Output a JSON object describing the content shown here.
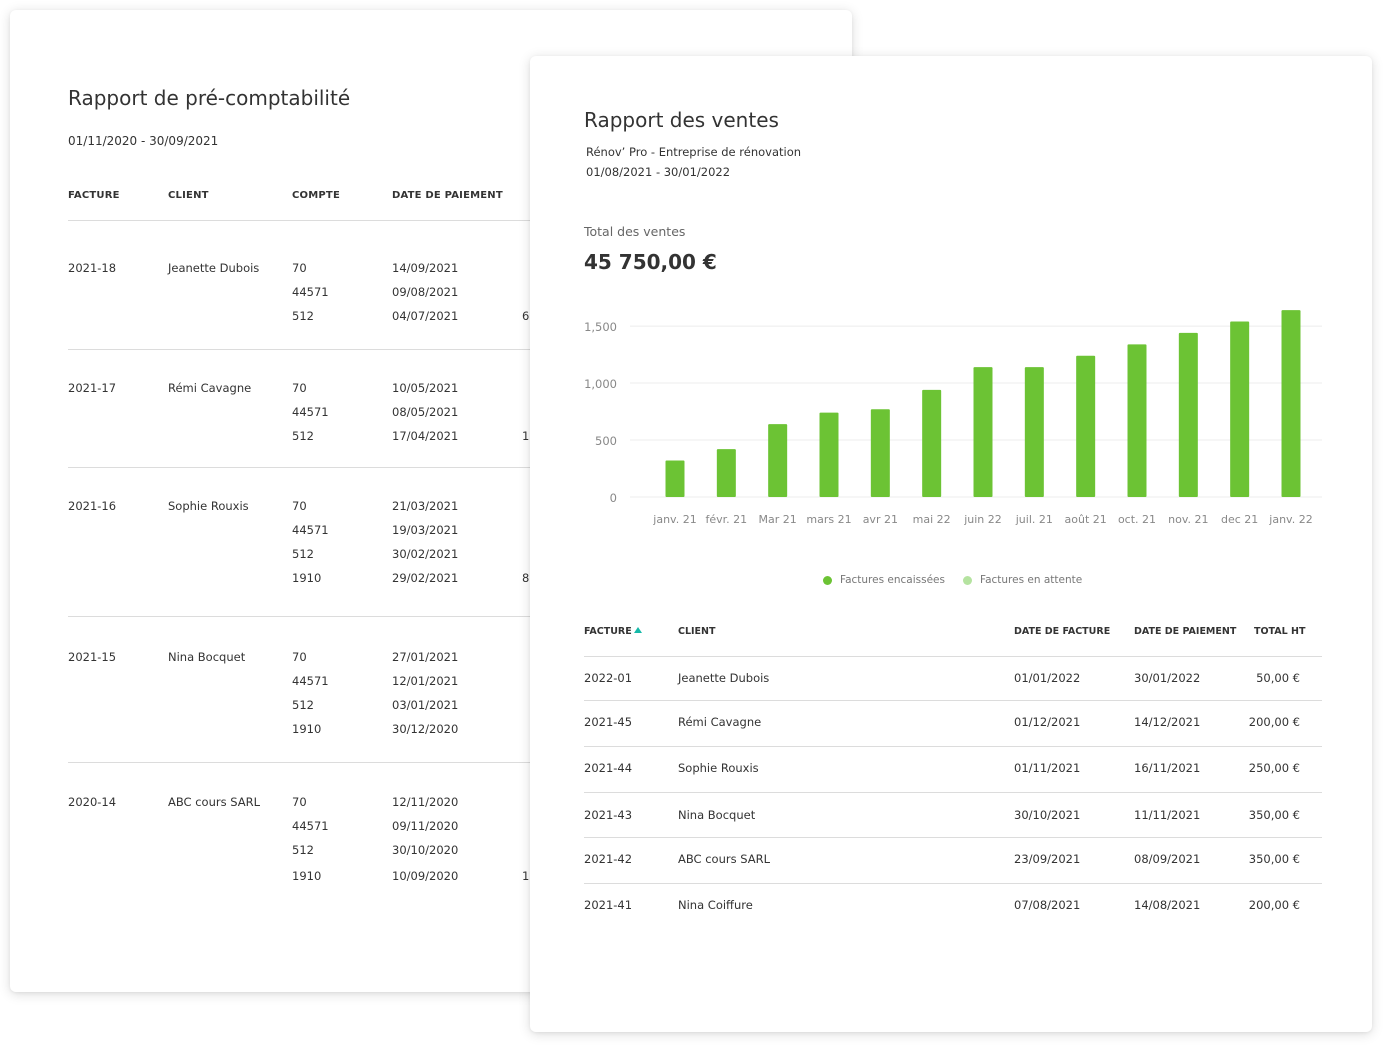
{
  "precompta": {
    "title": "Rapport de pré-comptabilité",
    "period": "01/11/2020 - 30/09/2021",
    "headers": [
      "FACTURE",
      "CLIENT",
      "COMPTE",
      "DATE DE PAIEMENT"
    ],
    "entries": [
      {
        "facture": "2021-18",
        "client": "Jeanette Dubois",
        "lines": [
          {
            "compte": "70",
            "date": "14/09/2021",
            "extra": ""
          },
          {
            "compte": "44571",
            "date": "09/08/2021",
            "extra": ""
          },
          {
            "compte": "512",
            "date": "04/07/2021",
            "extra": "6"
          }
        ]
      },
      {
        "facture": "2021-17",
        "client": "Rémi Cavagne",
        "lines": [
          {
            "compte": "70",
            "date": "10/05/2021",
            "extra": ""
          },
          {
            "compte": "44571",
            "date": "08/05/2021",
            "extra": ""
          },
          {
            "compte": "512",
            "date": "17/04/2021",
            "extra": "1"
          }
        ]
      },
      {
        "facture": "2021-16",
        "client": "Sophie Rouxis",
        "lines": [
          {
            "compte": "70",
            "date": "21/03/2021",
            "extra": ""
          },
          {
            "compte": "44571",
            "date": "19/03/2021",
            "extra": ""
          },
          {
            "compte": "512",
            "date": "30/02/2021",
            "extra": ""
          },
          {
            "compte": "1910",
            "date": "29/02/2021",
            "extra": "8"
          }
        ]
      },
      {
        "facture": "2021-15",
        "client": "Nina Bocquet",
        "lines": [
          {
            "compte": "70",
            "date": "27/01/2021",
            "extra": ""
          },
          {
            "compte": "44571",
            "date": "12/01/2021",
            "extra": ""
          },
          {
            "compte": "512",
            "date": "03/01/2021",
            "extra": ""
          },
          {
            "compte": "1910",
            "date": "30/12/2020",
            "extra": ""
          }
        ]
      },
      {
        "facture": "2020-14",
        "client": "ABC cours SARL",
        "lines": [
          {
            "compte": "70",
            "date": "12/11/2020",
            "extra": ""
          },
          {
            "compte": "44571",
            "date": "09/11/2020",
            "extra": ""
          },
          {
            "compte": "512",
            "date": "30/10/2020",
            "extra": ""
          },
          {
            "compte": "1910",
            "date": "10/09/2020",
            "extra": "1"
          }
        ]
      }
    ]
  },
  "ventes": {
    "title": "Rapport des ventes",
    "company": "Rénov’ Pro - Entreprise de rénovation",
    "period": "01/08/2021 - 30/01/2022",
    "total_label": "Total des ventes",
    "total_value": "45 750,00 €",
    "legend": {
      "paid": "Factures encaissées",
      "pending": "Factures en attente"
    },
    "colors": {
      "paid": "#6cc334",
      "pending": "#b5e3a0"
    },
    "table": {
      "headers": {
        "facture": "FACTURE",
        "client": "CLIENT",
        "date_facture": "DATE DE FACTURE",
        "date_paiement": "DATE DE PAIEMENT",
        "total": "TOTAL HT"
      },
      "rows": [
        {
          "facture": "2022-01",
          "client": "Jeanette Dubois",
          "date_facture": "01/01/2022",
          "date_paiement": "30/01/2022",
          "total": "50,00 €"
        },
        {
          "facture": "2021-45",
          "client": "Rémi Cavagne",
          "date_facture": "01/12/2021",
          "date_paiement": "14/12/2021",
          "total": "200,00 €"
        },
        {
          "facture": "2021-44",
          "client": "Sophie Rouxis",
          "date_facture": "01/11/2021",
          "date_paiement": "16/11/2021",
          "total": "250,00 €"
        },
        {
          "facture": "2021-43",
          "client": "Nina Bocquet",
          "date_facture": "30/10/2021",
          "date_paiement": "11/11/2021",
          "total": "350,00 €"
        },
        {
          "facture": "2021-42",
          "client": "ABC cours SARL",
          "date_facture": "23/09/2021",
          "date_paiement": "08/09/2021",
          "total": "350,00 €"
        },
        {
          "facture": "2021-41",
          "client": "Nina Coiffure",
          "date_facture": "07/08/2021",
          "date_paiement": "14/08/2021",
          "total": "200,00 €"
        }
      ]
    }
  },
  "chart_data": {
    "type": "bar",
    "categories": [
      "janv. 21",
      "févr. 21",
      "Mar 21",
      "mars 21",
      "avr 21",
      "mai 22",
      "juin 22",
      "juil. 21",
      "août 21",
      "oct. 21",
      "nov. 21",
      "dec 21",
      "janv. 22"
    ],
    "series": [
      {
        "name": "Factures encaissées",
        "values": [
          320,
          420,
          640,
          740,
          770,
          940,
          1140,
          1140,
          1240,
          1340,
          1440,
          1540,
          1640
        ]
      },
      {
        "name": "Factures en attente",
        "values": [
          0,
          0,
          0,
          0,
          0,
          0,
          0,
          0,
          0,
          0,
          0,
          0,
          0
        ]
      }
    ],
    "yticks": [
      "0",
      "500",
      "1,000",
      "1,500"
    ],
    "ytick_values": [
      0,
      500,
      1000,
      1500
    ],
    "ylim": [
      0,
      1650
    ],
    "grid": true,
    "legend_position": "bottom"
  }
}
